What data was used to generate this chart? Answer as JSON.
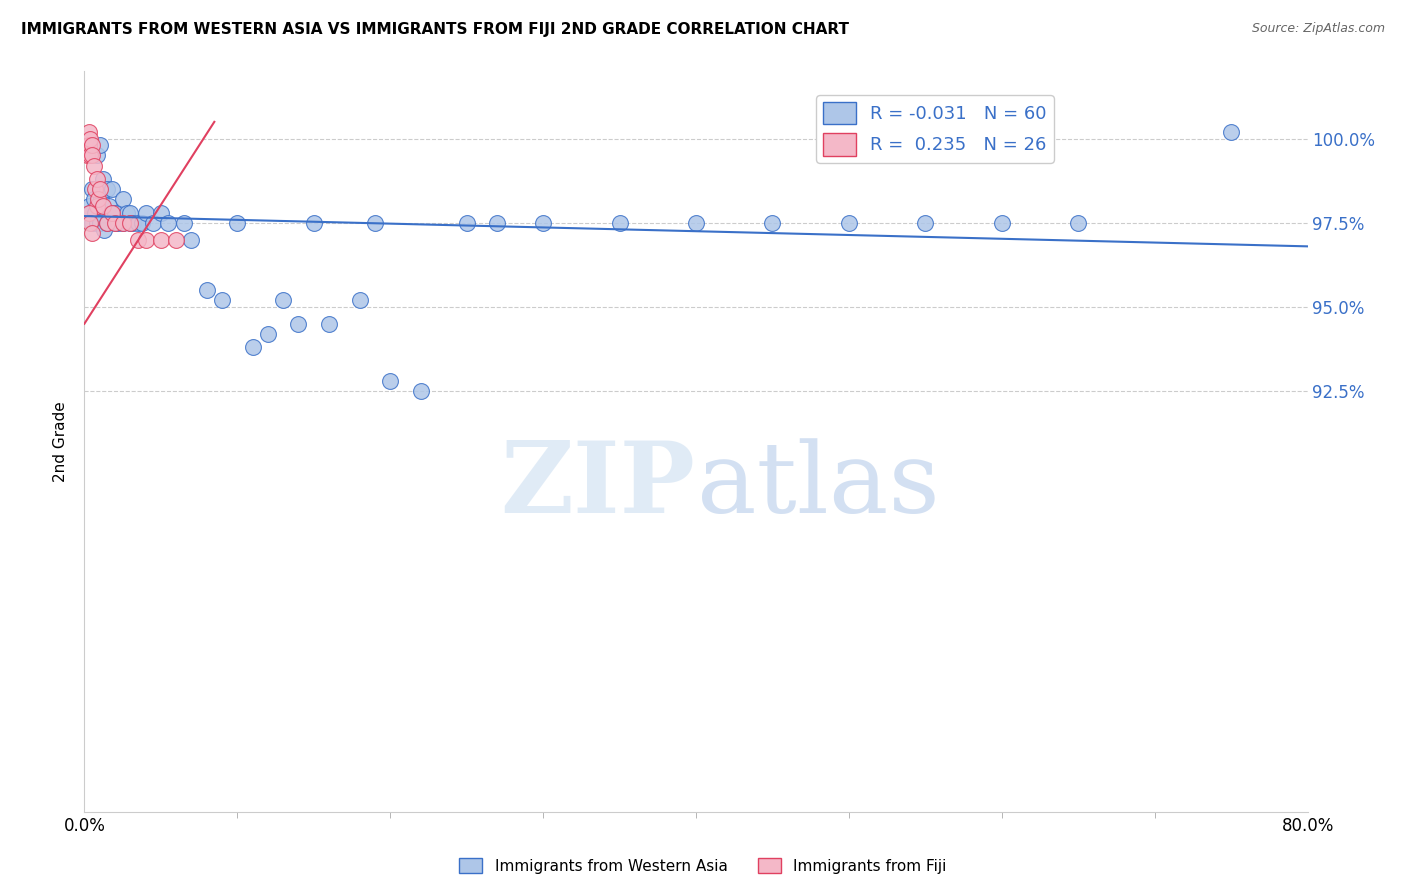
{
  "title": "IMMIGRANTS FROM WESTERN ASIA VS IMMIGRANTS FROM FIJI 2ND GRADE CORRELATION CHART",
  "source": "Source: ZipAtlas.com",
  "ylabel": "2nd Grade",
  "yaxis_ticks": [
    92.5,
    95.0,
    97.5,
    100.0
  ],
  "yaxis_tick_labels": [
    "92.5%",
    "95.0%",
    "97.5%",
    "100.0%"
  ],
  "xlim": [
    0.0,
    80.0
  ],
  "ylim": [
    80.0,
    102.0
  ],
  "legend_r1": "R = -0.031",
  "legend_n1": "N = 60",
  "legend_r2": "R =  0.235",
  "legend_n2": "N = 26",
  "color_blue": "#aec6e8",
  "color_pink": "#f4b8c8",
  "line_blue": "#3a70c8",
  "line_pink": "#e04060",
  "watermark_zip": "ZIP",
  "watermark_atlas": "atlas",
  "blue_x": [
    0.3,
    0.4,
    0.5,
    0.5,
    0.6,
    0.7,
    0.8,
    0.8,
    0.9,
    1.0,
    1.0,
    1.1,
    1.2,
    1.3,
    1.5,
    1.5,
    1.6,
    1.8,
    1.8,
    2.0,
    2.0,
    2.2,
    2.5,
    2.5,
    2.8,
    3.0,
    3.0,
    3.2,
    3.5,
    3.8,
    4.0,
    4.5,
    5.0,
    5.5,
    6.5,
    7.0,
    8.0,
    9.0,
    10.0,
    11.0,
    12.0,
    13.0,
    14.0,
    15.0,
    16.0,
    18.0,
    19.0,
    20.0,
    22.0,
    25.0,
    27.0,
    30.0,
    35.0,
    40.0,
    45.0,
    50.0,
    55.0,
    60.0,
    65.0,
    75.0
  ],
  "blue_y": [
    98.0,
    97.8,
    98.5,
    97.5,
    98.2,
    97.8,
    99.5,
    97.5,
    98.0,
    99.8,
    97.5,
    98.2,
    98.8,
    97.3,
    98.5,
    97.5,
    98.0,
    97.8,
    98.5,
    97.5,
    97.8,
    97.5,
    98.2,
    97.5,
    97.8,
    97.8,
    97.5,
    97.5,
    97.5,
    97.5,
    97.8,
    97.5,
    97.8,
    97.5,
    97.5,
    97.0,
    95.5,
    95.2,
    97.5,
    93.8,
    94.2,
    95.2,
    94.5,
    97.5,
    94.5,
    95.2,
    97.5,
    92.8,
    92.5,
    97.5,
    97.5,
    97.5,
    97.5,
    97.5,
    97.5,
    97.5,
    97.5,
    97.5,
    97.5,
    100.2
  ],
  "pink_x": [
    0.2,
    0.3,
    0.3,
    0.4,
    0.4,
    0.5,
    0.5,
    0.6,
    0.7,
    0.8,
    0.8,
    0.9,
    1.0,
    1.2,
    1.5,
    1.8,
    2.0,
    2.5,
    3.0,
    3.5,
    4.0,
    5.0,
    6.0,
    0.3,
    0.4,
    0.5
  ],
  "pink_y": [
    99.5,
    100.2,
    99.8,
    100.0,
    99.5,
    99.8,
    99.5,
    99.2,
    98.5,
    98.8,
    98.0,
    98.2,
    98.5,
    98.0,
    97.5,
    97.8,
    97.5,
    97.5,
    97.5,
    97.0,
    97.0,
    97.0,
    97.0,
    97.8,
    97.5,
    97.2
  ],
  "blue_line_x0": 0.0,
  "blue_line_x1": 80.0,
  "blue_line_y0": 97.7,
  "blue_line_y1": 96.8,
  "pink_line_x0": 0.0,
  "pink_line_x1": 8.5,
  "pink_line_y0": 94.5,
  "pink_line_y1": 100.5
}
